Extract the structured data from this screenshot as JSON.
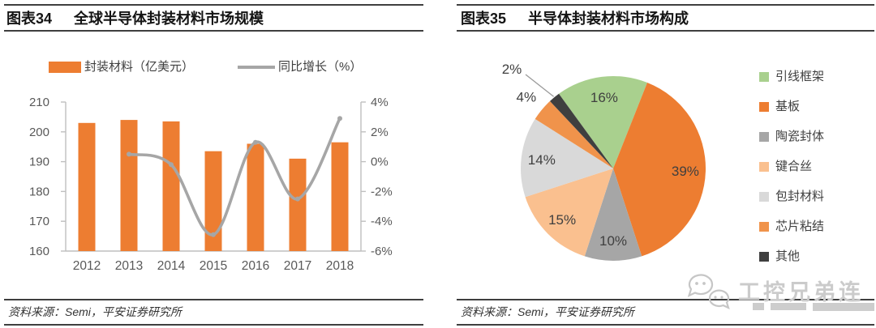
{
  "figures": {
    "left": {
      "tag": "图表34",
      "title": "全球半导体封装材料市场规模",
      "source": "资料来源：Semi，平安证券研究所"
    },
    "right": {
      "tag": "图表35",
      "title": "半导体封装材料市场构成",
      "source": "资料来源：Semi，平安证券研究所"
    }
  },
  "chart_data": [
    {
      "type": "bar",
      "title": "全球半导体封装材料市场规模",
      "categories": [
        "2012",
        "2013",
        "2014",
        "2015",
        "2016",
        "2017",
        "2018"
      ],
      "series": [
        {
          "name": "封装材料（亿美元）",
          "type": "bar",
          "axis": "left",
          "color": "#ED7D31",
          "values": [
            203,
            204,
            203.5,
            193.5,
            196,
            191,
            196.5
          ]
        },
        {
          "name": "同比增长（%）",
          "type": "line",
          "axis": "right",
          "color": "#A6A6A6",
          "smooth": true,
          "values": [
            null,
            0.5,
            -0.2,
            -4.9,
            1.3,
            -2.5,
            2.9
          ]
        }
      ],
      "left_axis": {
        "min": 160,
        "max": 210,
        "step": 10,
        "tick_labels": [
          "160",
          "170",
          "180",
          "190",
          "200",
          "210"
        ]
      },
      "right_axis": {
        "min": -6,
        "max": 4,
        "step": 2,
        "tick_labels": [
          "-6%",
          "-4%",
          "-2%",
          "0%",
          "2%",
          "4%"
        ]
      },
      "grid": false,
      "legend_position": "top",
      "axis_color": "#BFBFBF",
      "tick_text_color": "#595959"
    },
    {
      "type": "pie",
      "title": "半导体封装材料市场构成",
      "start_angle_deg": -36,
      "direction": "clockwise",
      "legend_position": "right",
      "slices": [
        {
          "label": "引线框架",
          "value_pct": 16,
          "color": "#A9D08E",
          "label_text": "16%"
        },
        {
          "label": "基板",
          "value_pct": 39,
          "color": "#ED7D31",
          "label_text": "39%"
        },
        {
          "label": "陶瓷封体",
          "value_pct": 10,
          "color": "#A6A6A6",
          "label_text": "10%"
        },
        {
          "label": "键合丝",
          "value_pct": 15,
          "color": "#FAC08F",
          "label_text": "15%"
        },
        {
          "label": "包封材料",
          "value_pct": 14,
          "color": "#D9D9D9",
          "label_text": "14%"
        },
        {
          "label": "芯片粘结",
          "value_pct": 4,
          "color": "#F0934B",
          "label_text": "4%"
        },
        {
          "label": "其他",
          "value_pct": 2,
          "color": "#3F3F3F",
          "label_text": "2%"
        }
      ],
      "label_text_color": "#3f3f3f"
    }
  ],
  "watermark": {
    "text": "工控兄弟连"
  }
}
